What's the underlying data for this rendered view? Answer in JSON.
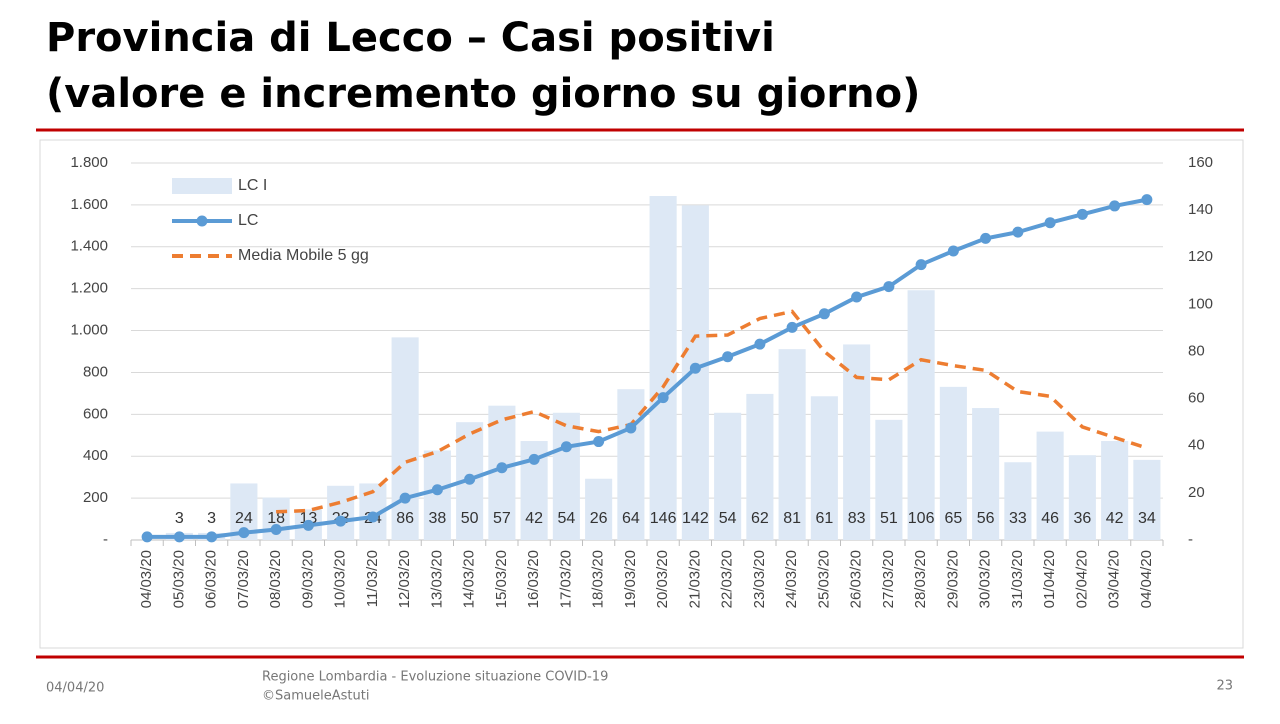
{
  "chart_data": {
    "type": "bar-line",
    "title": [
      "Provincia di Lecco – Casi positivi",
      "(valore e incremento giorno su giorno)"
    ],
    "categories": [
      "04/03/20",
      "05/03/20",
      "06/03/20",
      "07/03/20",
      "08/03/20",
      "09/03/20",
      "10/03/20",
      "11/03/20",
      "12/03/20",
      "13/03/20",
      "14/03/20",
      "15/03/20",
      "16/03/20",
      "17/03/20",
      "18/03/20",
      "19/03/20",
      "20/03/20",
      "21/03/20",
      "22/03/20",
      "23/03/20",
      "24/03/20",
      "25/03/20",
      "26/03/20",
      "27/03/20",
      "28/03/20",
      "29/03/20",
      "30/03/20",
      "31/03/20",
      "01/04/20",
      "02/04/20",
      "03/04/20",
      "04/04/20"
    ],
    "series": [
      {
        "name": "LC I",
        "type": "bar",
        "axis": "y2",
        "color": "#dde8f5",
        "values": [
          null,
          3,
          3,
          24,
          18,
          13,
          23,
          24,
          86,
          38,
          50,
          57,
          42,
          54,
          26,
          64,
          146,
          142,
          54,
          62,
          81,
          61,
          83,
          51,
          106,
          65,
          56,
          33,
          46,
          36,
          42,
          34
        ]
      },
      {
        "name": "LC",
        "type": "line",
        "color": "#5b9bd5",
        "values": [
          15,
          15,
          15,
          35,
          50,
          70,
          90,
          110,
          200,
          240,
          290,
          345,
          385,
          445,
          470,
          535,
          680,
          820,
          875,
          935,
          1015,
          1080,
          1160,
          1210,
          1315,
          1380,
          1440,
          1470,
          1515,
          1555,
          1595,
          1625
        ]
      },
      {
        "name": "Media Mobile 5 gg",
        "type": "dashed-line",
        "axis": "y2",
        "color": "#ed7d31",
        "values": [
          null,
          null,
          null,
          null,
          12,
          12.5,
          16,
          20.5,
          33,
          37.5,
          45,
          51,
          54.5,
          48.5,
          46,
          49,
          65,
          86.5,
          87,
          94,
          97,
          80,
          69,
          68,
          76.5,
          74,
          72,
          63,
          61,
          48,
          43.5,
          39
        ]
      }
    ],
    "ylim": [
      0,
      1800
    ],
    "yticks": [
      {
        "value": 0,
        "label": "-"
      },
      {
        "value": 200,
        "label": "200"
      },
      {
        "value": 400,
        "label": "400"
      },
      {
        "value": 600,
        "label": "600"
      },
      {
        "value": 800,
        "label": "800"
      },
      {
        "value": 1000,
        "label": "1.000"
      },
      {
        "value": 1200,
        "label": "1.200"
      },
      {
        "value": 1400,
        "label": "1.400"
      },
      {
        "value": 1600,
        "label": "1.600"
      },
      {
        "value": 1800,
        "label": "1.800"
      }
    ],
    "y2lim": [
      0,
      160
    ],
    "y2ticks": [
      {
        "value": 0,
        "label": "-"
      },
      20,
      40,
      60,
      80,
      100,
      120,
      140,
      160
    ],
    "grid": true,
    "legend": "top-left"
  },
  "footer": {
    "date": "04/04/20",
    "source": [
      "Regione Lombardia - Evoluzione situazione COVID-19",
      "©SamueleAstuti"
    ],
    "page": "23"
  }
}
